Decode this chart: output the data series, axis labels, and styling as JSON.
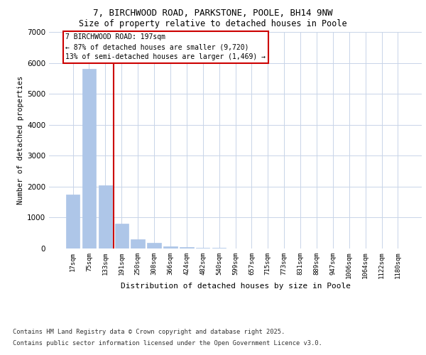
{
  "title_line1": "7, BIRCHWOOD ROAD, PARKSTONE, POOLE, BH14 9NW",
  "title_line2": "Size of property relative to detached houses in Poole",
  "xlabel": "Distribution of detached houses by size in Poole",
  "ylabel": "Number of detached properties",
  "categories": [
    "17sqm",
    "75sqm",
    "133sqm",
    "191sqm",
    "250sqm",
    "308sqm",
    "366sqm",
    "424sqm",
    "482sqm",
    "540sqm",
    "599sqm",
    "657sqm",
    "715sqm",
    "773sqm",
    "831sqm",
    "889sqm",
    "947sqm",
    "1006sqm",
    "1064sqm",
    "1122sqm",
    "1180sqm"
  ],
  "values": [
    1750,
    5800,
    2050,
    800,
    300,
    175,
    80,
    55,
    30,
    20,
    10,
    5,
    2,
    0,
    0,
    0,
    0,
    0,
    0,
    0,
    0
  ],
  "bar_color": "#aec6e8",
  "bar_edge_color": "#aec6e8",
  "property_line_index": 3,
  "property_line_color": "#cc0000",
  "annotation_text": "7 BIRCHWOOD ROAD: 197sqm\n← 87% of detached houses are smaller (9,720)\n13% of semi-detached houses are larger (1,469) →",
  "annotation_box_color": "#ffffff",
  "annotation_box_edge_color": "#cc0000",
  "ylim": [
    0,
    7000
  ],
  "yticks": [
    0,
    1000,
    2000,
    3000,
    4000,
    5000,
    6000,
    7000
  ],
  "background_color": "#ffffff",
  "grid_color": "#c8d4e8",
  "footer_line1": "Contains HM Land Registry data © Crown copyright and database right 2025.",
  "footer_line2": "Contains public sector information licensed under the Open Government Licence v3.0."
}
